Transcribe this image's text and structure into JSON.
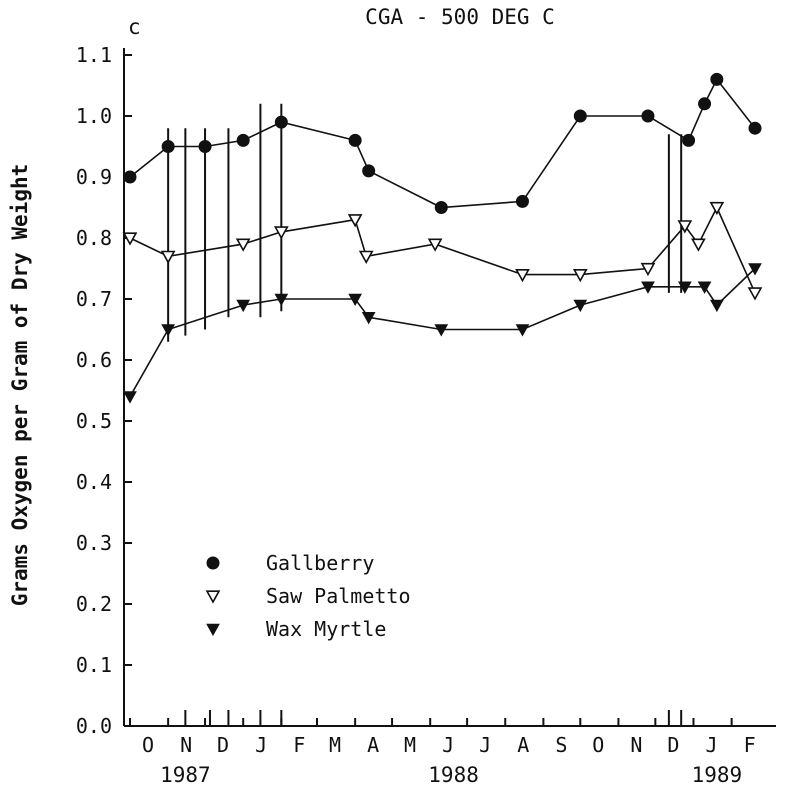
{
  "chart_data": {
    "type": "line",
    "panel_letter": "c",
    "title": "CGA - 500 DEG C",
    "ylabel": "Grams Oxygen per Gram of Dry Weight",
    "ylim": [
      0.0,
      1.1
    ],
    "yticks": [
      "0.0",
      "0.1",
      "0.2",
      "0.3",
      "0.4",
      "0.5",
      "0.6",
      "0.7",
      "0.8",
      "0.9",
      "1.0",
      "1.1"
    ],
    "months": [
      "O",
      "N",
      "D",
      "J",
      "F",
      "M",
      "A",
      "M",
      "J",
      "J",
      "A",
      "S",
      "O",
      "N",
      "D",
      "J",
      "F"
    ],
    "years": [
      "1987",
      "1988",
      "1989"
    ],
    "legend_position": "bottom-left",
    "series": [
      {
        "name": "Gallberry",
        "marker": "filled-circle",
        "points": [
          {
            "date": "1987-10-01",
            "y": 0.9
          },
          {
            "date": "1987-11-01",
            "y": 0.95
          },
          {
            "date": "1987-12-01",
            "y": 0.95
          },
          {
            "date": "1988-01-01",
            "y": 0.96
          },
          {
            "date": "1988-02-01",
            "y": 0.99
          },
          {
            "date": "1988-04-01",
            "y": 0.96
          },
          {
            "date": "1988-04-12",
            "y": 0.91
          },
          {
            "date": "1988-06-10",
            "y": 0.85
          },
          {
            "date": "1988-08-15",
            "y": 0.86
          },
          {
            "date": "1988-10-01",
            "y": 1.0
          },
          {
            "date": "1988-11-25",
            "y": 1.0
          },
          {
            "date": "1988-12-28",
            "y": 0.96
          },
          {
            "date": "1989-01-10",
            "y": 1.02
          },
          {
            "date": "1989-01-20",
            "y": 1.06
          },
          {
            "date": "1989-02-20",
            "y": 0.98
          }
        ]
      },
      {
        "name": "Saw Palmetto",
        "marker": "open-triangle-down",
        "points": [
          {
            "date": "1987-10-01",
            "y": 0.8
          },
          {
            "date": "1987-11-01",
            "y": 0.77
          },
          {
            "date": "1988-01-01",
            "y": 0.79
          },
          {
            "date": "1988-02-01",
            "y": 0.81
          },
          {
            "date": "1988-04-01",
            "y": 0.83
          },
          {
            "date": "1988-04-10",
            "y": 0.77
          },
          {
            "date": "1988-06-05",
            "y": 0.79
          },
          {
            "date": "1988-08-15",
            "y": 0.74
          },
          {
            "date": "1988-10-01",
            "y": 0.74
          },
          {
            "date": "1988-11-25",
            "y": 0.75
          },
          {
            "date": "1988-12-25",
            "y": 0.82
          },
          {
            "date": "1989-01-05",
            "y": 0.79
          },
          {
            "date": "1989-01-20",
            "y": 0.85
          },
          {
            "date": "1989-02-20",
            "y": 0.71
          }
        ]
      },
      {
        "name": "Wax Myrtle",
        "marker": "filled-triangle-down",
        "points": [
          {
            "date": "1987-10-01",
            "y": 0.54
          },
          {
            "date": "1987-11-01",
            "y": 0.65
          },
          {
            "date": "1988-01-01",
            "y": 0.69
          },
          {
            "date": "1988-02-01",
            "y": 0.7
          },
          {
            "date": "1988-04-01",
            "y": 0.7
          },
          {
            "date": "1988-04-12",
            "y": 0.67
          },
          {
            "date": "1988-06-10",
            "y": 0.65
          },
          {
            "date": "1988-08-15",
            "y": 0.65
          },
          {
            "date": "1988-10-01",
            "y": 0.69
          },
          {
            "date": "1988-11-25",
            "y": 0.72
          },
          {
            "date": "1988-12-25",
            "y": 0.72
          },
          {
            "date": "1989-01-10",
            "y": 0.72
          },
          {
            "date": "1989-01-20",
            "y": 0.69
          },
          {
            "date": "1989-02-20",
            "y": 0.75
          }
        ]
      }
    ],
    "vertical_lines": [
      {
        "date": "1987-11-01",
        "ymin": 0.63,
        "ymax": 0.98
      },
      {
        "date": "1987-11-15",
        "ymin": 0.64,
        "ymax": 0.98
      },
      {
        "date": "1987-12-01",
        "ymin": 0.65,
        "ymax": 0.98
      },
      {
        "date": "1987-12-20",
        "ymin": 0.67,
        "ymax": 0.98
      },
      {
        "date": "1988-01-15",
        "ymin": 0.67,
        "ymax": 1.02
      },
      {
        "date": "1988-02-01",
        "ymin": 0.68,
        "ymax": 1.02
      },
      {
        "date": "1988-12-12",
        "ymin": 0.71,
        "ymax": 0.97
      },
      {
        "date": "1988-12-22",
        "ymin": 0.71,
        "ymax": 0.97
      }
    ],
    "axis_ticks_extra": [
      "1987-11-15",
      "1987-12-05",
      "1987-12-20",
      "1988-01-15",
      "1988-02-01",
      "1988-12-12",
      "1988-12-22"
    ]
  }
}
